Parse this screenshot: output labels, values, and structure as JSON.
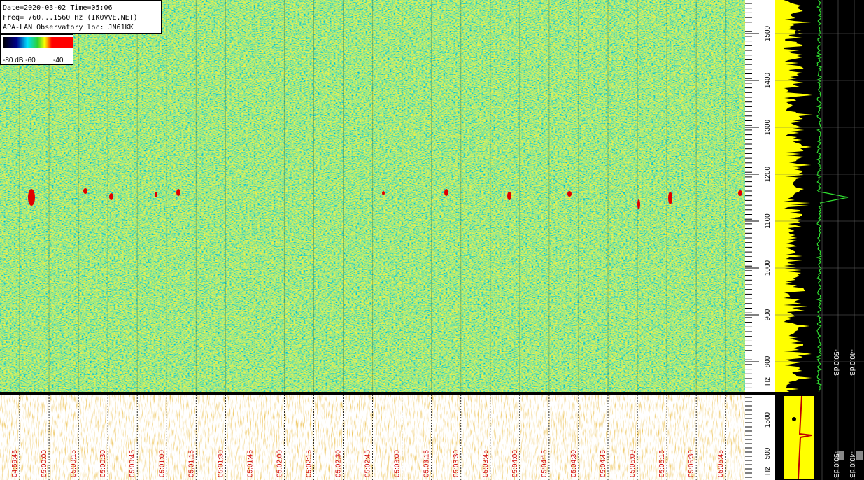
{
  "header": {
    "lines": [
      "Date=2020-03-02 Time=05:06",
      "Freq= 760...1560 Hz (IK0VVE.NET)",
      "APA-LAN Observatory loc: JN61KK"
    ]
  },
  "colorbar": {
    "labels": [
      "-80 dB -60",
      "-40"
    ]
  },
  "freq_axis": {
    "labels": [
      "1500",
      "1400",
      "1300",
      "1200",
      "1100",
      "1000",
      "900",
      "800"
    ],
    "unit": "Hz"
  },
  "spectrum_axis": {
    "labels": [
      "-50.0 dB",
      "-40.0 dB"
    ]
  },
  "lower_freq_axis": {
    "labels": [
      "1500",
      "500"
    ],
    "unit": "Hz"
  },
  "lower_spectrum_axis": {
    "labels": [
      "-50.0 dB",
      "-40.0 dB"
    ]
  },
  "time_labels": [
    "04:59:45",
    "05:00:00",
    "05:00:15",
    "05:00:30",
    "05:00:45",
    "05:01:00",
    "05:01:15",
    "05:01:30",
    "05:01:45",
    "05:02:00",
    "05:02:15",
    "05:02:30",
    "05:02:45",
    "05:03:00",
    "05:03:15",
    "05:03:30",
    "05:03:45",
    "05:04:00",
    "05:04:15",
    "05:04:30",
    "05:04:45",
    "05:05:00",
    "05:05:15",
    "05:05:30",
    "05:05:45"
  ]
}
